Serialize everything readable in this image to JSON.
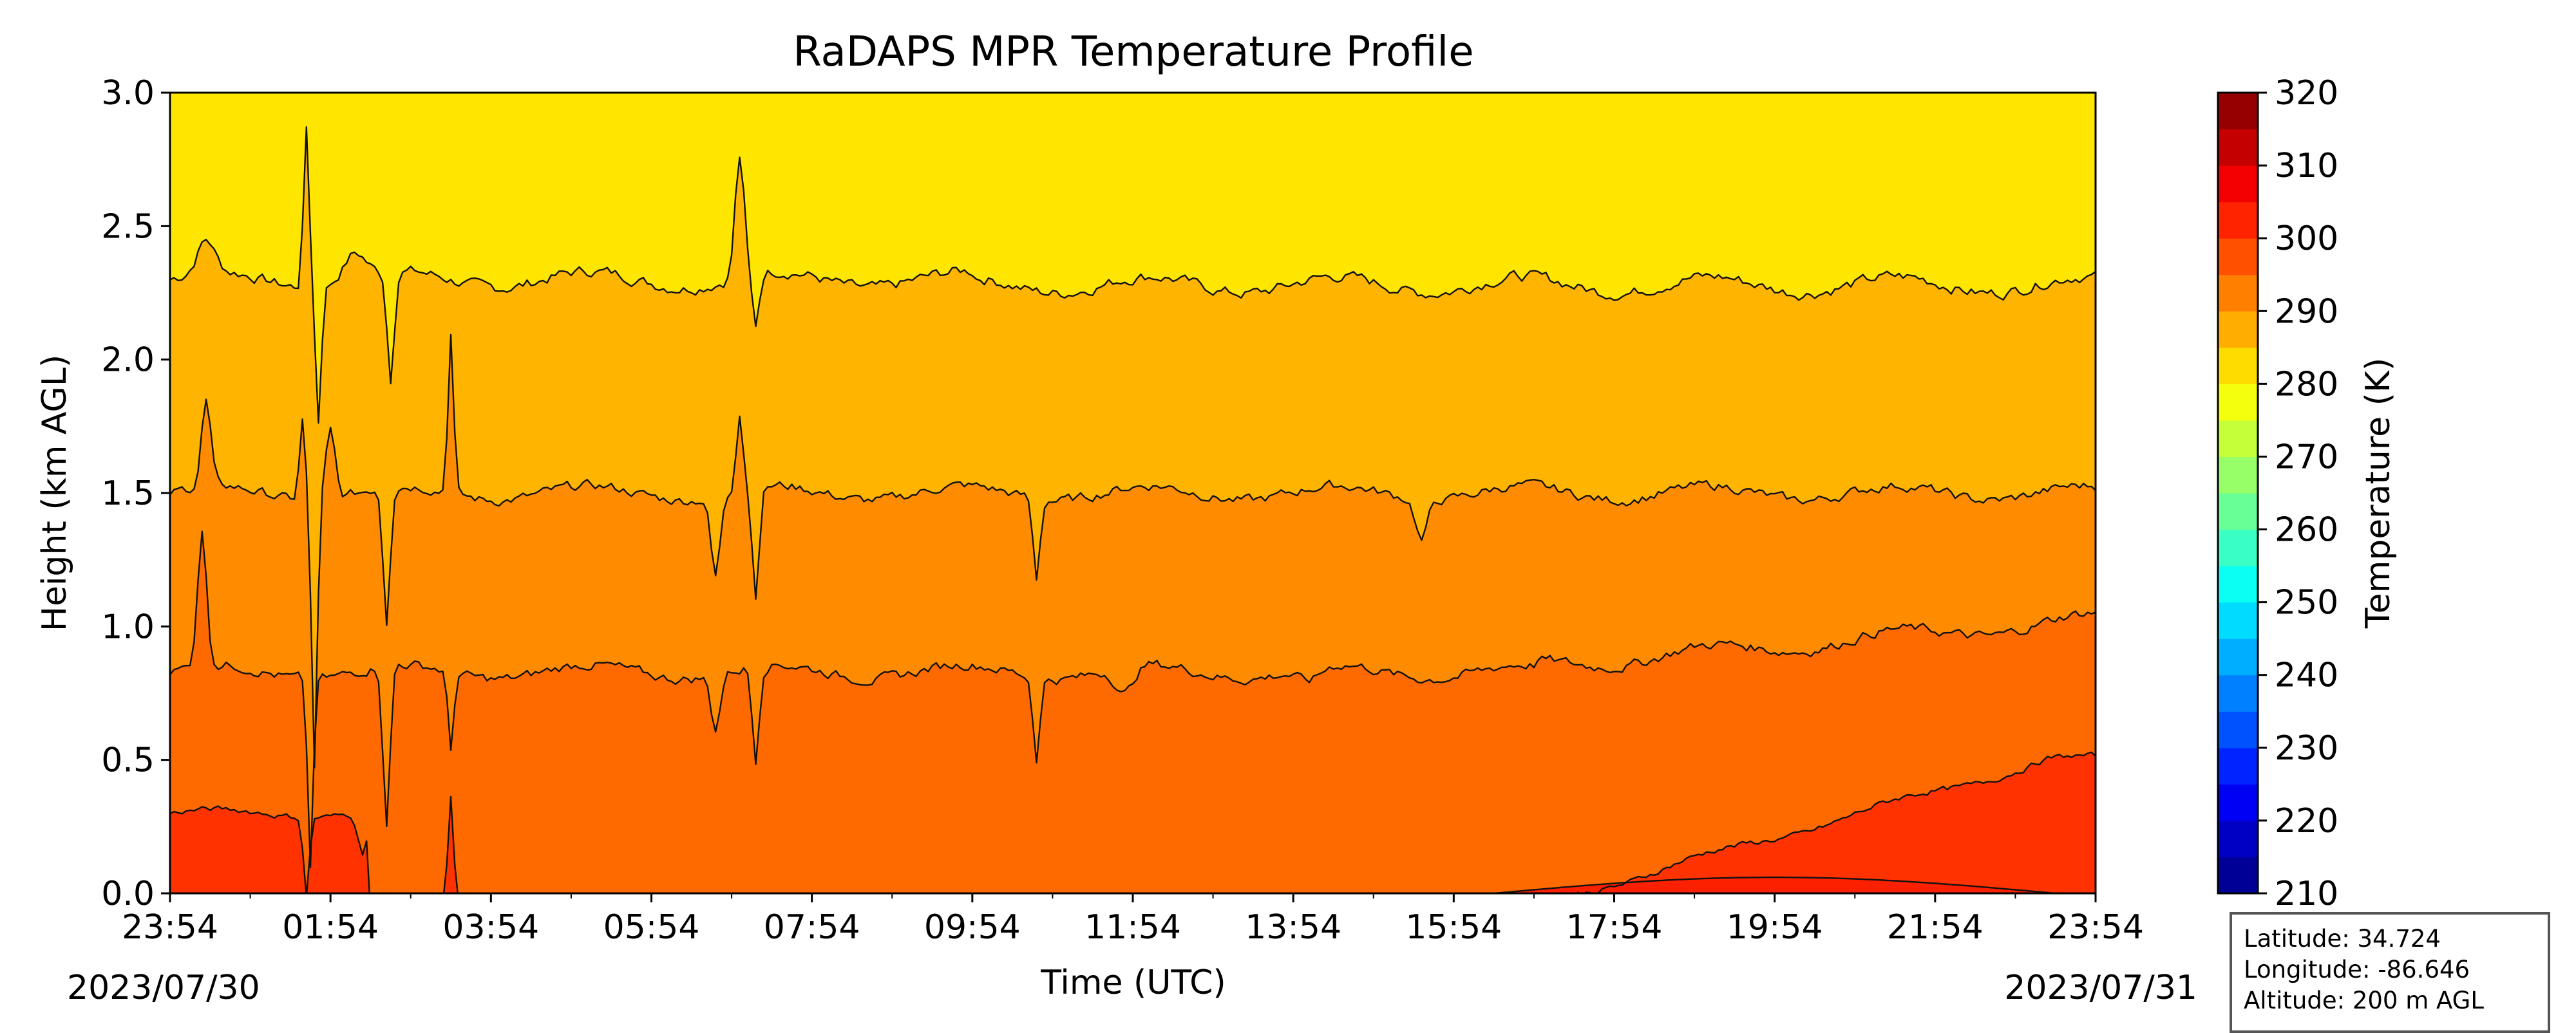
{
  "chart_data": {
    "type": "contourf",
    "title": "RaDAPS MPR Temperature Profile",
    "xlabel": "Time (UTC)",
    "ylabel": "Height (km AGL)",
    "x_ticks": [
      "23:54",
      "01:54",
      "03:54",
      "05:54",
      "07:54",
      "09:54",
      "11:54",
      "13:54",
      "15:54",
      "17:54",
      "19:54",
      "21:54",
      "23:54"
    ],
    "x_date_labels": {
      "start": "2023/07/30",
      "end": "2023/07/31"
    },
    "x_range_hours": [
      0,
      24
    ],
    "y_ticks": [
      "0.0",
      "0.5",
      "1.0",
      "1.5",
      "2.0",
      "2.5",
      "3.0"
    ],
    "ylim": [
      0,
      3
    ],
    "colorbar": {
      "label": "Temperature (K)",
      "ticks": [
        "210",
        "220",
        "230",
        "240",
        "250",
        "260",
        "270",
        "280",
        "290",
        "300",
        "310",
        "320"
      ],
      "range": [
        210,
        320
      ],
      "step": 5
    },
    "levels": [
      {
        "value": 275,
        "mean_height_km": 2.3
      },
      {
        "value": 280,
        "mean_height_km": 1.5
      },
      {
        "value": 285,
        "mean_height_km": 0.85
      },
      {
        "value": 290,
        "mean_height_km": 0.3
      },
      {
        "value": 295,
        "mean_height_km": 0.05
      }
    ],
    "band_colors": {
      "below_295": "#fe6400",
      "295_300": "#ff3200",
      "290_295": "#ff6a00",
      "285_290": "#ff8c00",
      "280_285": "#ffb400",
      "275_280": "#ffe600",
      "above_275": "#ffe600"
    }
  },
  "info": {
    "latitude": "Latitude: 34.724",
    "longitude": "Longitude: -86.646",
    "altitude": "Altitude: 200 m AGL"
  }
}
